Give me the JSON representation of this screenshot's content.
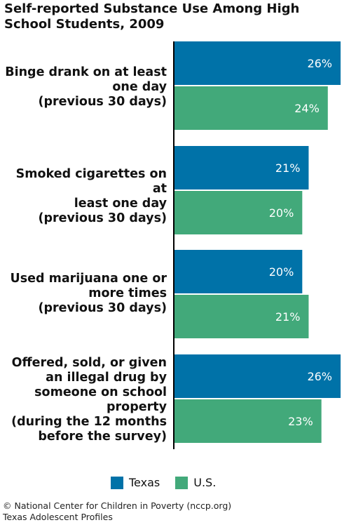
{
  "title": "Self-reported Substance Use Among High School Students, 2009",
  "colors": {
    "texas": "#0072a8",
    "us": "#42a97a",
    "axis": "#000000",
    "label_text": "#ffffff"
  },
  "chart_data": {
    "type": "bar",
    "orientation": "horizontal",
    "categories": [
      "Binge drank on at least\none day\n(previous 30 days)",
      "Smoked cigarettes on at\nleast one day\n(previous 30 days)",
      "Used marijuana one or\nmore times\n(previous 30 days)",
      "Offered, sold, or given\nan illegal drug by\nsomeone on school\nproperty\n(during the 12 months\nbefore the survey)"
    ],
    "series": [
      {
        "name": "Texas",
        "values": [
          26,
          21,
          20,
          26
        ],
        "labels": [
          "26%",
          "21%",
          "20%",
          "26%"
        ]
      },
      {
        "name": "U.S.",
        "values": [
          24,
          20,
          21,
          23
        ],
        "labels": [
          "24%",
          "20%",
          "21%",
          "23%"
        ]
      }
    ],
    "xlim": [
      0,
      26
    ],
    "unit": "%",
    "grid": false,
    "legend_position": "bottom"
  },
  "legend": {
    "texas": "Texas",
    "us": "U.S."
  },
  "footer": {
    "line1": "© National Center for Children in Poverty (nccp.org)",
    "line2": "Texas Adolescent Profiles"
  }
}
